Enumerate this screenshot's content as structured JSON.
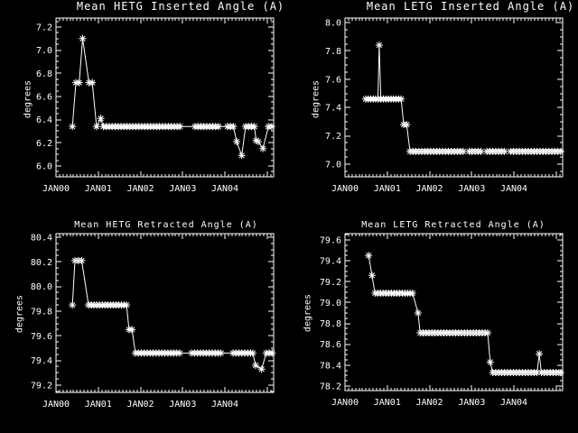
{
  "page": {
    "background": "#000000",
    "foreground": "#ffffff"
  },
  "chart_data": [
    {
      "id": "hetg-inserted",
      "type": "line",
      "title": "Mean HETG Inserted Angle (A)",
      "ylabel": "degrees",
      "marker": "asterisk",
      "line_color": "#ffffff",
      "grid": false,
      "legend": null,
      "xlim": [
        2000,
        2005.155
      ],
      "ylim": [
        5.906,
        7.278
      ],
      "y_ticks": [
        "6.0",
        "6.2",
        "6.4",
        "6.6",
        "6.8",
        "7.0",
        "7.2"
      ],
      "x_ticks": [
        {
          "label": "JAN00",
          "year": 2000
        },
        {
          "label": "JAN01",
          "year": 2001
        },
        {
          "label": "JAN02",
          "year": 2002
        },
        {
          "label": "JAN03",
          "year": 2003
        },
        {
          "label": "JAN04",
          "year": 2004
        }
      ],
      "points": [
        [
          2000.39,
          6.34
        ],
        [
          2000.47,
          6.72
        ],
        [
          2000.55,
          6.72
        ],
        [
          2000.63,
          7.1
        ],
        [
          2000.78,
          6.72
        ],
        [
          2000.86,
          6.72
        ],
        [
          2000.96,
          6.34
        ],
        [
          2001.06,
          6.41
        ],
        [
          2001.12,
          6.34
        ],
        [
          2001.19,
          6.34
        ],
        [
          2001.26,
          6.34
        ],
        [
          2001.33,
          6.34
        ],
        [
          2001.4,
          6.34
        ],
        [
          2001.47,
          6.34
        ],
        [
          2001.54,
          6.34
        ],
        [
          2001.61,
          6.34
        ],
        [
          2001.68,
          6.34
        ],
        [
          2001.75,
          6.34
        ],
        [
          2001.82,
          6.34
        ],
        [
          2001.89,
          6.34
        ],
        [
          2001.96,
          6.34
        ],
        [
          2002.03,
          6.34
        ],
        [
          2002.1,
          6.34
        ],
        [
          2002.17,
          6.34
        ],
        [
          2002.24,
          6.34
        ],
        [
          2002.31,
          6.34
        ],
        [
          2002.38,
          6.34
        ],
        [
          2002.45,
          6.34
        ],
        [
          2002.52,
          6.34
        ],
        [
          2002.59,
          6.34
        ],
        [
          2002.66,
          6.34
        ],
        [
          2002.73,
          6.34
        ],
        [
          2002.8,
          6.34
        ],
        [
          2002.87,
          6.34
        ],
        [
          2002.94,
          6.34
        ],
        [
          2003.29,
          6.34
        ],
        [
          2003.36,
          6.34
        ],
        [
          2003.43,
          6.34
        ],
        [
          2003.5,
          6.34
        ],
        [
          2003.57,
          6.34
        ],
        [
          2003.64,
          6.34
        ],
        [
          2003.71,
          6.34
        ],
        [
          2003.78,
          6.34
        ],
        [
          2003.85,
          6.34
        ],
        [
          2004.06,
          6.34
        ],
        [
          2004.13,
          6.34
        ],
        [
          2004.2,
          6.34
        ],
        [
          2004.28,
          6.21
        ],
        [
          2004.4,
          6.09
        ],
        [
          2004.49,
          6.34
        ],
        [
          2004.56,
          6.34
        ],
        [
          2004.63,
          6.34
        ],
        [
          2004.7,
          6.34
        ],
        [
          2004.74,
          6.22
        ],
        [
          2004.79,
          6.21
        ],
        [
          2004.9,
          6.15
        ],
        [
          2005.03,
          6.34
        ],
        [
          2005.11,
          6.34
        ]
      ]
    },
    {
      "id": "letg-inserted",
      "type": "line",
      "title": "Mean LETG Inserted Angle (A)",
      "ylabel": "degrees",
      "marker": "asterisk",
      "line_color": "#ffffff",
      "grid": false,
      "legend": null,
      "xlim": [
        2000,
        2005.155
      ],
      "ylim": [
        6.911,
        8.032
      ],
      "y_ticks": [
        "7.0",
        "7.2",
        "7.4",
        "7.6",
        "7.8",
        "8.0"
      ],
      "x_ticks": [
        {
          "label": "JAN00",
          "year": 2000
        },
        {
          "label": "JAN01",
          "year": 2001
        },
        {
          "label": "JAN02",
          "year": 2002
        },
        {
          "label": "JAN03",
          "year": 2003
        },
        {
          "label": "JAN04",
          "year": 2004
        }
      ],
      "points": [
        [
          2000.49,
          7.46
        ],
        [
          2000.55,
          7.46
        ],
        [
          2000.61,
          7.46
        ],
        [
          2000.67,
          7.46
        ],
        [
          2000.73,
          7.46
        ],
        [
          2000.78,
          7.46
        ],
        [
          2000.81,
          7.84
        ],
        [
          2000.85,
          7.46
        ],
        [
          2000.91,
          7.46
        ],
        [
          2000.97,
          7.46
        ],
        [
          2001.03,
          7.46
        ],
        [
          2001.09,
          7.46
        ],
        [
          2001.15,
          7.46
        ],
        [
          2001.21,
          7.46
        ],
        [
          2001.27,
          7.46
        ],
        [
          2001.33,
          7.46
        ],
        [
          2001.39,
          7.28
        ],
        [
          2001.46,
          7.28
        ],
        [
          2001.54,
          7.09
        ],
        [
          2001.61,
          7.09
        ],
        [
          2001.68,
          7.09
        ],
        [
          2001.75,
          7.09
        ],
        [
          2001.82,
          7.09
        ],
        [
          2001.89,
          7.09
        ],
        [
          2001.96,
          7.09
        ],
        [
          2002.03,
          7.09
        ],
        [
          2002.1,
          7.09
        ],
        [
          2002.17,
          7.09
        ],
        [
          2002.24,
          7.09
        ],
        [
          2002.31,
          7.09
        ],
        [
          2002.38,
          7.09
        ],
        [
          2002.45,
          7.09
        ],
        [
          2002.52,
          7.09
        ],
        [
          2002.59,
          7.09
        ],
        [
          2002.66,
          7.09
        ],
        [
          2002.73,
          7.09
        ],
        [
          2002.8,
          7.09
        ],
        [
          2002.94,
          7.09
        ],
        [
          2003.01,
          7.09
        ],
        [
          2003.08,
          7.09
        ],
        [
          2003.15,
          7.09
        ],
        [
          2003.22,
          7.09
        ],
        [
          2003.36,
          7.09
        ],
        [
          2003.43,
          7.09
        ],
        [
          2003.5,
          7.09
        ],
        [
          2003.57,
          7.09
        ],
        [
          2003.64,
          7.09
        ],
        [
          2003.71,
          7.09
        ],
        [
          2003.78,
          7.09
        ],
        [
          2003.92,
          7.09
        ],
        [
          2003.99,
          7.09
        ],
        [
          2004.06,
          7.09
        ],
        [
          2004.13,
          7.09
        ],
        [
          2004.2,
          7.09
        ],
        [
          2004.27,
          7.09
        ],
        [
          2004.34,
          7.09
        ],
        [
          2004.41,
          7.09
        ],
        [
          2004.48,
          7.09
        ],
        [
          2004.55,
          7.09
        ],
        [
          2004.62,
          7.09
        ],
        [
          2004.69,
          7.09
        ],
        [
          2004.76,
          7.09
        ],
        [
          2004.83,
          7.09
        ],
        [
          2004.9,
          7.09
        ],
        [
          2004.97,
          7.09
        ],
        [
          2005.04,
          7.09
        ],
        [
          2005.11,
          7.09
        ]
      ]
    },
    {
      "id": "hetg-retracted",
      "type": "line",
      "title": "Mean HETG Retracted Angle (A)",
      "ylabel": "degrees",
      "marker": "asterisk",
      "line_color": "#ffffff",
      "grid": false,
      "legend": null,
      "xlim": [
        2000,
        2005.155
      ],
      "ylim": [
        79.141,
        80.429
      ],
      "y_ticks": [
        "79.2",
        "79.4",
        "79.6",
        "79.8",
        "80.0",
        "80.2",
        "80.4"
      ],
      "x_ticks": [
        {
          "label": "JAN00",
          "year": 2000
        },
        {
          "label": "JAN01",
          "year": 2001
        },
        {
          "label": "JAN02",
          "year": 2002
        },
        {
          "label": "JAN03",
          "year": 2003
        },
        {
          "label": "JAN04",
          "year": 2004
        }
      ],
      "points": [
        [
          2000.39,
          79.85
        ],
        [
          2000.45,
          80.21
        ],
        [
          2000.53,
          80.21
        ],
        [
          2000.61,
          80.21
        ],
        [
          2000.77,
          79.85
        ],
        [
          2000.84,
          79.85
        ],
        [
          2000.9,
          79.85
        ],
        [
          2000.97,
          79.85
        ],
        [
          2001.03,
          79.85
        ],
        [
          2001.1,
          79.85
        ],
        [
          2001.16,
          79.85
        ],
        [
          2001.23,
          79.85
        ],
        [
          2001.29,
          79.85
        ],
        [
          2001.36,
          79.85
        ],
        [
          2001.42,
          79.85
        ],
        [
          2001.49,
          79.85
        ],
        [
          2001.55,
          79.85
        ],
        [
          2001.61,
          79.85
        ],
        [
          2001.67,
          79.85
        ],
        [
          2001.73,
          79.65
        ],
        [
          2001.8,
          79.65
        ],
        [
          2001.88,
          79.46
        ],
        [
          2001.95,
          79.46
        ],
        [
          2002.02,
          79.46
        ],
        [
          2002.09,
          79.46
        ],
        [
          2002.16,
          79.46
        ],
        [
          2002.23,
          79.46
        ],
        [
          2002.3,
          79.46
        ],
        [
          2002.37,
          79.46
        ],
        [
          2002.44,
          79.46
        ],
        [
          2002.51,
          79.46
        ],
        [
          2002.58,
          79.46
        ],
        [
          2002.65,
          79.46
        ],
        [
          2002.72,
          79.46
        ],
        [
          2002.79,
          79.46
        ],
        [
          2002.86,
          79.46
        ],
        [
          2002.93,
          79.46
        ],
        [
          2003.21,
          79.46
        ],
        [
          2003.28,
          79.46
        ],
        [
          2003.35,
          79.46
        ],
        [
          2003.42,
          79.46
        ],
        [
          2003.49,
          79.46
        ],
        [
          2003.56,
          79.46
        ],
        [
          2003.63,
          79.46
        ],
        [
          2003.7,
          79.46
        ],
        [
          2003.77,
          79.46
        ],
        [
          2003.84,
          79.46
        ],
        [
          2003.91,
          79.46
        ],
        [
          2004.19,
          79.46
        ],
        [
          2004.26,
          79.46
        ],
        [
          2004.33,
          79.46
        ],
        [
          2004.4,
          79.46
        ],
        [
          2004.47,
          79.46
        ],
        [
          2004.54,
          79.46
        ],
        [
          2004.61,
          79.46
        ],
        [
          2004.66,
          79.46
        ],
        [
          2004.73,
          79.36
        ],
        [
          2004.87,
          79.33
        ],
        [
          2004.98,
          79.46
        ],
        [
          2005.05,
          79.46
        ],
        [
          2005.12,
          79.46
        ]
      ]
    },
    {
      "id": "letg-retracted",
      "type": "line",
      "title": "Mean LETG Retracted Angle (A)",
      "ylabel": "degrees",
      "marker": "asterisk",
      "line_color": "#ffffff",
      "grid": false,
      "legend": null,
      "xlim": [
        2000,
        2005.155
      ],
      "ylim": [
        78.157,
        79.66
      ],
      "y_ticks": [
        "78.2",
        "78.4",
        "78.6",
        "78.8",
        "79.0",
        "79.2",
        "79.4",
        "79.6"
      ],
      "x_ticks": [
        {
          "label": "JAN00",
          "year": 2000
        },
        {
          "label": "JAN01",
          "year": 2001
        },
        {
          "label": "JAN02",
          "year": 2002
        },
        {
          "label": "JAN03",
          "year": 2003
        },
        {
          "label": "JAN04",
          "year": 2004
        }
      ],
      "points": [
        [
          2000.56,
          79.45
        ],
        [
          2000.64,
          79.26
        ],
        [
          2000.71,
          79.09
        ],
        [
          2000.77,
          79.09
        ],
        [
          2000.84,
          79.09
        ],
        [
          2000.9,
          79.09
        ],
        [
          2000.97,
          79.09
        ],
        [
          2001.03,
          79.09
        ],
        [
          2001.1,
          79.09
        ],
        [
          2001.16,
          79.09
        ],
        [
          2001.23,
          79.09
        ],
        [
          2001.29,
          79.09
        ],
        [
          2001.36,
          79.09
        ],
        [
          2001.42,
          79.09
        ],
        [
          2001.48,
          79.09
        ],
        [
          2001.54,
          79.09
        ],
        [
          2001.6,
          79.09
        ],
        [
          2001.73,
          78.9
        ],
        [
          2001.78,
          78.71
        ],
        [
          2001.85,
          78.71
        ],
        [
          2001.92,
          78.71
        ],
        [
          2001.99,
          78.71
        ],
        [
          2002.06,
          78.71
        ],
        [
          2002.13,
          78.71
        ],
        [
          2002.2,
          78.71
        ],
        [
          2002.27,
          78.71
        ],
        [
          2002.34,
          78.71
        ],
        [
          2002.41,
          78.71
        ],
        [
          2002.48,
          78.71
        ],
        [
          2002.55,
          78.71
        ],
        [
          2002.62,
          78.71
        ],
        [
          2002.69,
          78.71
        ],
        [
          2002.76,
          78.71
        ],
        [
          2002.83,
          78.71
        ],
        [
          2002.9,
          78.71
        ],
        [
          2002.97,
          78.71
        ],
        [
          2003.04,
          78.71
        ],
        [
          2003.11,
          78.71
        ],
        [
          2003.18,
          78.71
        ],
        [
          2003.25,
          78.71
        ],
        [
          2003.32,
          78.71
        ],
        [
          2003.38,
          78.71
        ],
        [
          2003.44,
          78.43
        ],
        [
          2003.5,
          78.33
        ],
        [
          2003.57,
          78.33
        ],
        [
          2003.64,
          78.33
        ],
        [
          2003.71,
          78.33
        ],
        [
          2003.78,
          78.33
        ],
        [
          2003.85,
          78.33
        ],
        [
          2003.92,
          78.33
        ],
        [
          2003.99,
          78.33
        ],
        [
          2004.06,
          78.33
        ],
        [
          2004.13,
          78.33
        ],
        [
          2004.2,
          78.33
        ],
        [
          2004.27,
          78.33
        ],
        [
          2004.34,
          78.33
        ],
        [
          2004.41,
          78.33
        ],
        [
          2004.48,
          78.33
        ],
        [
          2004.55,
          78.33
        ],
        [
          2004.6,
          78.51
        ],
        [
          2004.65,
          78.33
        ],
        [
          2004.72,
          78.33
        ],
        [
          2004.79,
          78.33
        ],
        [
          2004.86,
          78.33
        ],
        [
          2004.93,
          78.33
        ],
        [
          2005.0,
          78.33
        ],
        [
          2005.07,
          78.33
        ],
        [
          2005.11,
          78.33
        ]
      ]
    }
  ]
}
